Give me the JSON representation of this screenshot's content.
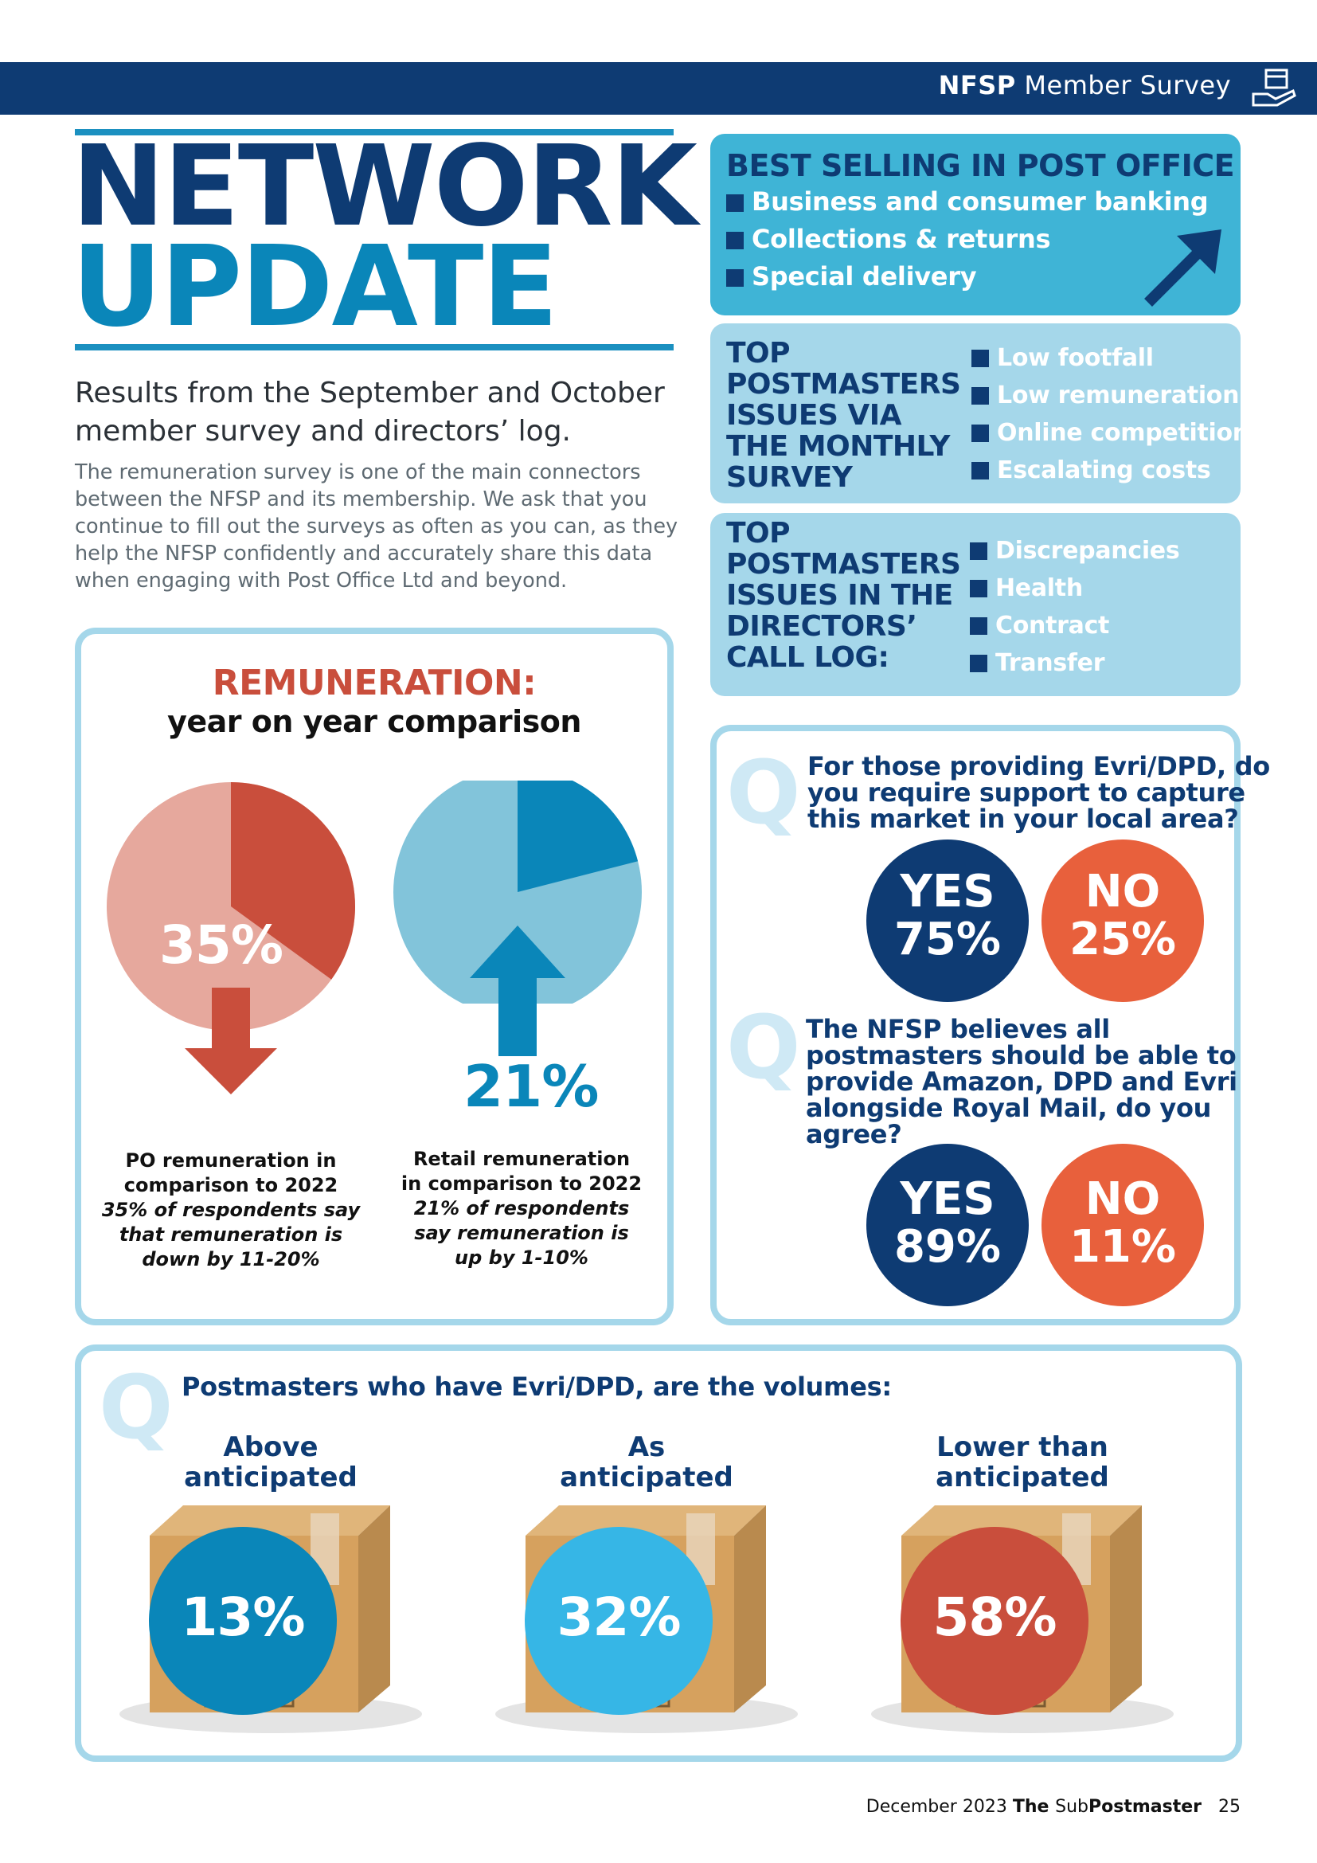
{
  "header": {
    "brand": "NFSP",
    "section": "Member Survey",
    "icon": "parcel-hand-icon"
  },
  "title": {
    "line1": "NETWORK",
    "line2": "UPDATE"
  },
  "intro": "Results from the September and October member survey and directors’ log.",
  "body": "The remuneration survey is one of the main connectors between the NFSP and its membership. We ask that you continue to fill out the surveys as often as you can, as they help the NFSP confidently and accurately share this data when engaging with Post Office Ltd and beyond.",
  "best_selling": {
    "title": "BEST SELLING IN POST OFFICE",
    "items": [
      "Business and consumer banking",
      "Collections & returns",
      "Special delivery"
    ],
    "icon": "arrow-up-right-icon"
  },
  "monthly_survey": {
    "title": [
      "TOP",
      "POSTMASTERS",
      "ISSUES VIA",
      "THE MONTHLY",
      "SURVEY"
    ],
    "items": [
      "Low footfall",
      "Low remuneration",
      "Online competition",
      "Escalating costs"
    ]
  },
  "call_log": {
    "title": [
      "TOP",
      "POSTMASTERS",
      "ISSUES IN THE",
      "DIRECTORS’",
      "CALL LOG:"
    ],
    "items": [
      "Discrepancies",
      "Health",
      "Contract",
      "Transfer"
    ]
  },
  "remuneration": {
    "title": "REMUNERATION:",
    "subtitle": "year on year comparison",
    "po": {
      "percent_label": "35%",
      "share": 0.35,
      "direction": "down",
      "caption_bold": [
        "PO remuneration in",
        "comparison to 2022"
      ],
      "caption_italic": [
        "35% of respondents say",
        "that remuneration is",
        "down by 11-20%"
      ]
    },
    "retail": {
      "percent_label": "21%",
      "share": 0.21,
      "direction": "up",
      "caption_bold": [
        "Retail remuneration",
        "in comparison to 2022"
      ],
      "caption_italic": [
        "21% of respondents",
        "say remuneration is",
        "up by 1-10%"
      ]
    },
    "colors": {
      "po_dark": "#c94e3c",
      "po_light": "#e6a89d",
      "retail_dark": "#0a86b9",
      "retail_light": "#82c4da"
    }
  },
  "question1": {
    "text": [
      "For those providing Evri/DPD, do",
      "you require support to capture",
      "this market in your local area?"
    ],
    "yes_label": "YES",
    "yes_value": "75%",
    "no_label": "NO",
    "no_value": "25%"
  },
  "question2": {
    "text": [
      "The NFSP believes all",
      "postmasters should be able to",
      "provide Amazon, DPD and Evri",
      "alongside Royal Mail, do you",
      "agree?"
    ],
    "yes_label": "YES",
    "yes_value": "89%",
    "no_label": "NO",
    "no_value": "11%"
  },
  "volumes": {
    "question": "Postmasters who have Evri/DPD, are the volumes:",
    "items": [
      {
        "label": [
          "Above",
          "anticipated"
        ],
        "value": "13%",
        "color": "#0a86b9"
      },
      {
        "label": [
          "As",
          "anticipated"
        ],
        "value": "32%",
        "color": "#36b6e6"
      },
      {
        "label": [
          "Lower than",
          "anticipated"
        ],
        "value": "58%",
        "color": "#c94e3c"
      }
    ]
  },
  "colors": {
    "navy": "#0e3b73",
    "teal": "#3fb4d6",
    "light_blue": "#a5d7ea",
    "orange": "#e8603c"
  },
  "footer": {
    "date": "December 2023",
    "mag_the": "The",
    "mag_sub": "Sub",
    "mag_post": "Postmaster",
    "page": "25"
  }
}
